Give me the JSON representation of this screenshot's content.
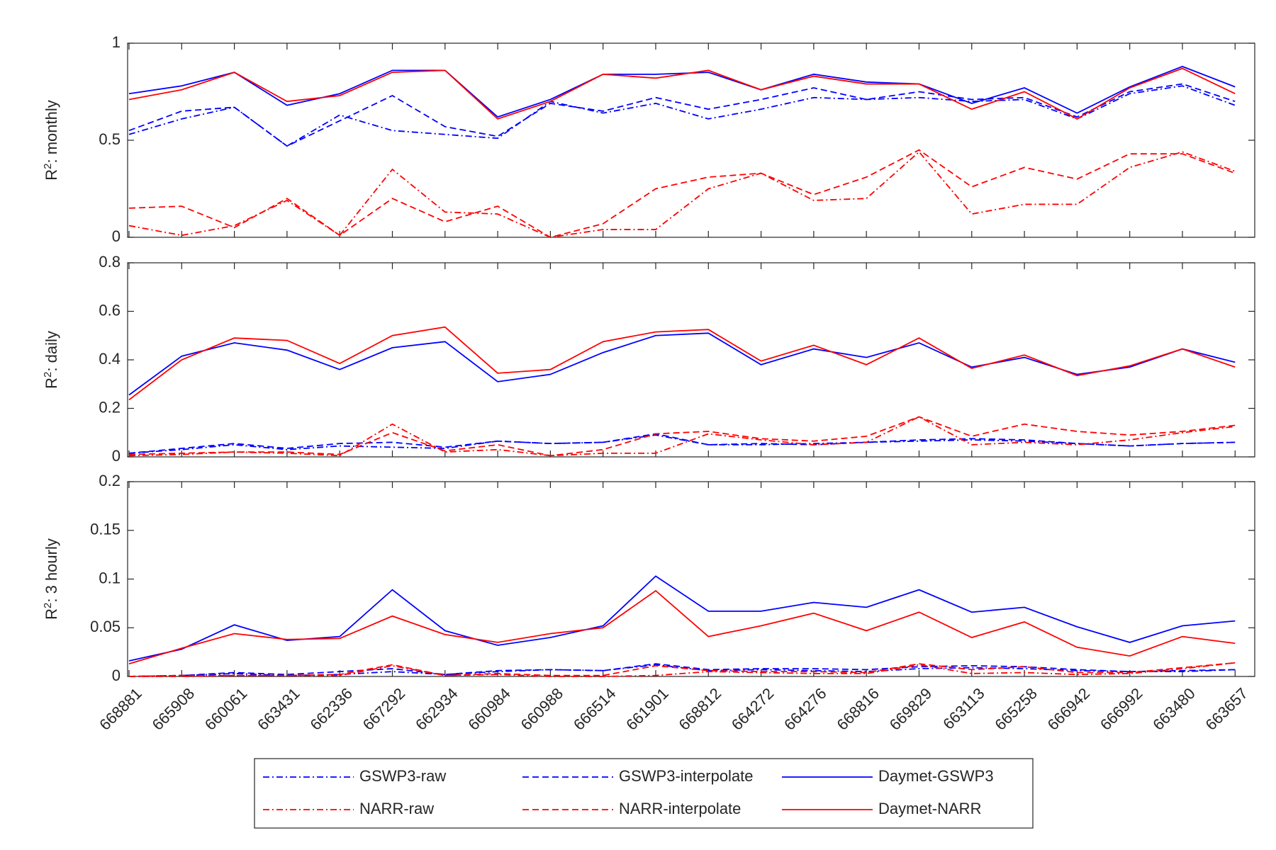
{
  "chart_data": [
    {
      "type": "line",
      "ylabel": [
        "R",
        "2",
        ": monthly"
      ],
      "ylim": [
        0,
        1
      ],
      "yticks": [
        0,
        0.5,
        1
      ],
      "series": [
        {
          "name": "GSWP3-raw",
          "color": "#0000ff",
          "linestyle": "dashdot",
          "values": [
            0.53,
            0.61,
            0.67,
            0.47,
            0.63,
            0.55,
            0.53,
            0.51,
            0.7,
            0.64,
            0.69,
            0.61,
            0.66,
            0.72,
            0.71,
            0.72,
            0.7,
            0.71,
            0.61,
            0.74,
            0.78,
            0.68
          ]
        },
        {
          "name": "GSWP3-interpolate",
          "color": "#0000ff",
          "linestyle": "dashed",
          "values": [
            0.55,
            0.65,
            0.67,
            0.47,
            0.6,
            0.73,
            0.57,
            0.52,
            0.69,
            0.65,
            0.72,
            0.66,
            0.71,
            0.77,
            0.71,
            0.75,
            0.71,
            0.72,
            0.62,
            0.75,
            0.79,
            0.7
          ]
        },
        {
          "name": "Daymet-GSWP3",
          "color": "#0000ff",
          "linestyle": "solid",
          "values": [
            0.74,
            0.78,
            0.85,
            0.68,
            0.74,
            0.86,
            0.86,
            0.62,
            0.71,
            0.84,
            0.84,
            0.85,
            0.76,
            0.84,
            0.8,
            0.79,
            0.69,
            0.77,
            0.64,
            0.775,
            0.88,
            0.775
          ]
        },
        {
          "name": "NARR-raw",
          "color": "#ff0000",
          "linestyle": "dashdot",
          "values": [
            0.06,
            0.01,
            0.06,
            0.19,
            0.01,
            0.35,
            0.13,
            0.12,
            0.0,
            0.04,
            0.04,
            0.25,
            0.33,
            0.19,
            0.2,
            0.44,
            0.12,
            0.17,
            0.17,
            0.36,
            0.44,
            0.34
          ]
        },
        {
          "name": "NARR-interpolate",
          "color": "#ff0000",
          "linestyle": "dashed",
          "values": [
            0.15,
            0.16,
            0.05,
            0.2,
            0.01,
            0.2,
            0.08,
            0.16,
            0.0,
            0.07,
            0.25,
            0.31,
            0.33,
            0.22,
            0.31,
            0.45,
            0.26,
            0.36,
            0.3,
            0.43,
            0.43,
            0.33
          ]
        },
        {
          "name": "Daymet-NARR",
          "color": "#ff0000",
          "linestyle": "solid",
          "values": [
            0.71,
            0.76,
            0.85,
            0.7,
            0.73,
            0.85,
            0.86,
            0.61,
            0.7,
            0.84,
            0.82,
            0.86,
            0.76,
            0.83,
            0.79,
            0.79,
            0.66,
            0.75,
            0.61,
            0.77,
            0.87,
            0.74
          ]
        }
      ]
    },
    {
      "type": "line",
      "ylabel": [
        "R",
        "2",
        ": daily"
      ],
      "ylim": [
        0,
        0.8
      ],
      "yticks": [
        0,
        0.2,
        0.4,
        0.6,
        0.8
      ],
      "series": [
        {
          "name": "GSWP3-raw",
          "color": "#0000ff",
          "linestyle": "dashdot",
          "values": [
            0.015,
            0.03,
            0.05,
            0.03,
            0.045,
            0.04,
            0.035,
            0.065,
            0.055,
            0.06,
            0.09,
            0.05,
            0.05,
            0.055,
            0.06,
            0.065,
            0.07,
            0.065,
            0.055,
            0.045,
            0.055,
            0.06
          ]
        },
        {
          "name": "GSWP3-interpolate",
          "color": "#0000ff",
          "linestyle": "dashed",
          "values": [
            0.015,
            0.035,
            0.055,
            0.035,
            0.055,
            0.06,
            0.04,
            0.065,
            0.055,
            0.06,
            0.095,
            0.05,
            0.055,
            0.05,
            0.06,
            0.07,
            0.075,
            0.07,
            0.055,
            0.045,
            0.055,
            0.06
          ]
        },
        {
          "name": "Daymet-GSWP3",
          "color": "#0000ff",
          "linestyle": "solid",
          "values": [
            0.255,
            0.415,
            0.47,
            0.44,
            0.36,
            0.45,
            0.475,
            0.31,
            0.34,
            0.43,
            0.5,
            0.51,
            0.38,
            0.445,
            0.41,
            0.47,
            0.37,
            0.41,
            0.34,
            0.37,
            0.445,
            0.39
          ]
        },
        {
          "name": "NARR-raw",
          "color": "#ff0000",
          "linestyle": "dashdot",
          "values": [
            0.005,
            0.01,
            0.02,
            0.015,
            0.005,
            0.135,
            0.02,
            0.03,
            0.005,
            0.015,
            0.015,
            0.095,
            0.07,
            0.05,
            0.06,
            0.165,
            0.05,
            0.06,
            0.05,
            0.07,
            0.1,
            0.125
          ]
        },
        {
          "name": "NARR-interpolate",
          "color": "#ff0000",
          "linestyle": "dashed",
          "values": [
            0.01,
            0.015,
            0.02,
            0.02,
            0.01,
            0.1,
            0.025,
            0.05,
            0.005,
            0.03,
            0.095,
            0.105,
            0.075,
            0.065,
            0.085,
            0.165,
            0.085,
            0.135,
            0.105,
            0.09,
            0.105,
            0.13
          ]
        },
        {
          "name": "Daymet-NARR",
          "color": "#ff0000",
          "linestyle": "solid",
          "values": [
            0.235,
            0.4,
            0.49,
            0.48,
            0.385,
            0.5,
            0.535,
            0.345,
            0.36,
            0.475,
            0.515,
            0.525,
            0.395,
            0.46,
            0.38,
            0.49,
            0.365,
            0.42,
            0.335,
            0.375,
            0.445,
            0.37
          ]
        }
      ]
    },
    {
      "type": "line",
      "ylabel": [
        "R",
        "2",
        ": 3 hourly"
      ],
      "ylim": [
        0,
        0.2
      ],
      "yticks": [
        0,
        0.05,
        0.1,
        0.15,
        0.2
      ],
      "categories": [
        "668881",
        "665908",
        "660061",
        "663431",
        "662336",
        "667292",
        "662934",
        "660984",
        "660988",
        "666514",
        "661901",
        "668812",
        "664272",
        "664276",
        "668816",
        "669829",
        "663113",
        "665258",
        "666942",
        "666992",
        "663480",
        "663657"
      ],
      "series": [
        {
          "name": "GSWP3-raw",
          "color": "#0000ff",
          "linestyle": "dashdot",
          "values": [
            0.0,
            0.001,
            0.003,
            0.001,
            0.002,
            0.005,
            0.002,
            0.005,
            0.007,
            0.006,
            0.012,
            0.006,
            0.007,
            0.006,
            0.005,
            0.008,
            0.009,
            0.008,
            0.006,
            0.005,
            0.005,
            0.007
          ]
        },
        {
          "name": "GSWP3-interpolate",
          "color": "#0000ff",
          "linestyle": "dashed",
          "values": [
            0.0,
            0.001,
            0.004,
            0.002,
            0.005,
            0.008,
            0.002,
            0.006,
            0.007,
            0.006,
            0.013,
            0.007,
            0.008,
            0.008,
            0.007,
            0.01,
            0.011,
            0.01,
            0.007,
            0.005,
            0.006,
            0.007
          ]
        },
        {
          "name": "Daymet-GSWP3",
          "color": "#0000ff",
          "linestyle": "solid",
          "values": [
            0.016,
            0.028,
            0.053,
            0.037,
            0.041,
            0.089,
            0.047,
            0.032,
            0.04,
            0.052,
            0.103,
            0.067,
            0.067,
            0.076,
            0.071,
            0.089,
            0.066,
            0.071,
            0.051,
            0.035,
            0.052,
            0.057
          ]
        },
        {
          "name": "NARR-raw",
          "color": "#ff0000",
          "linestyle": "dashdot",
          "values": [
            0.0,
            0.0,
            0.001,
            0.001,
            0.001,
            0.011,
            0.001,
            0.002,
            0.0,
            0.0,
            0.001,
            0.005,
            0.004,
            0.003,
            0.003,
            0.012,
            0.003,
            0.004,
            0.002,
            0.003,
            0.008,
            0.014
          ]
        },
        {
          "name": "NARR-interpolate",
          "color": "#ff0000",
          "linestyle": "dashed",
          "values": [
            0.0,
            0.001,
            0.001,
            0.001,
            0.002,
            0.012,
            0.001,
            0.003,
            0.001,
            0.001,
            0.011,
            0.006,
            0.005,
            0.005,
            0.004,
            0.013,
            0.007,
            0.01,
            0.004,
            0.004,
            0.009,
            0.014
          ]
        },
        {
          "name": "Daymet-NARR",
          "color": "#ff0000",
          "linestyle": "solid",
          "values": [
            0.013,
            0.029,
            0.044,
            0.038,
            0.039,
            0.062,
            0.043,
            0.035,
            0.044,
            0.05,
            0.088,
            0.041,
            0.052,
            0.065,
            0.047,
            0.066,
            0.04,
            0.056,
            0.03,
            0.021,
            0.041,
            0.034
          ]
        }
      ]
    }
  ]
}
